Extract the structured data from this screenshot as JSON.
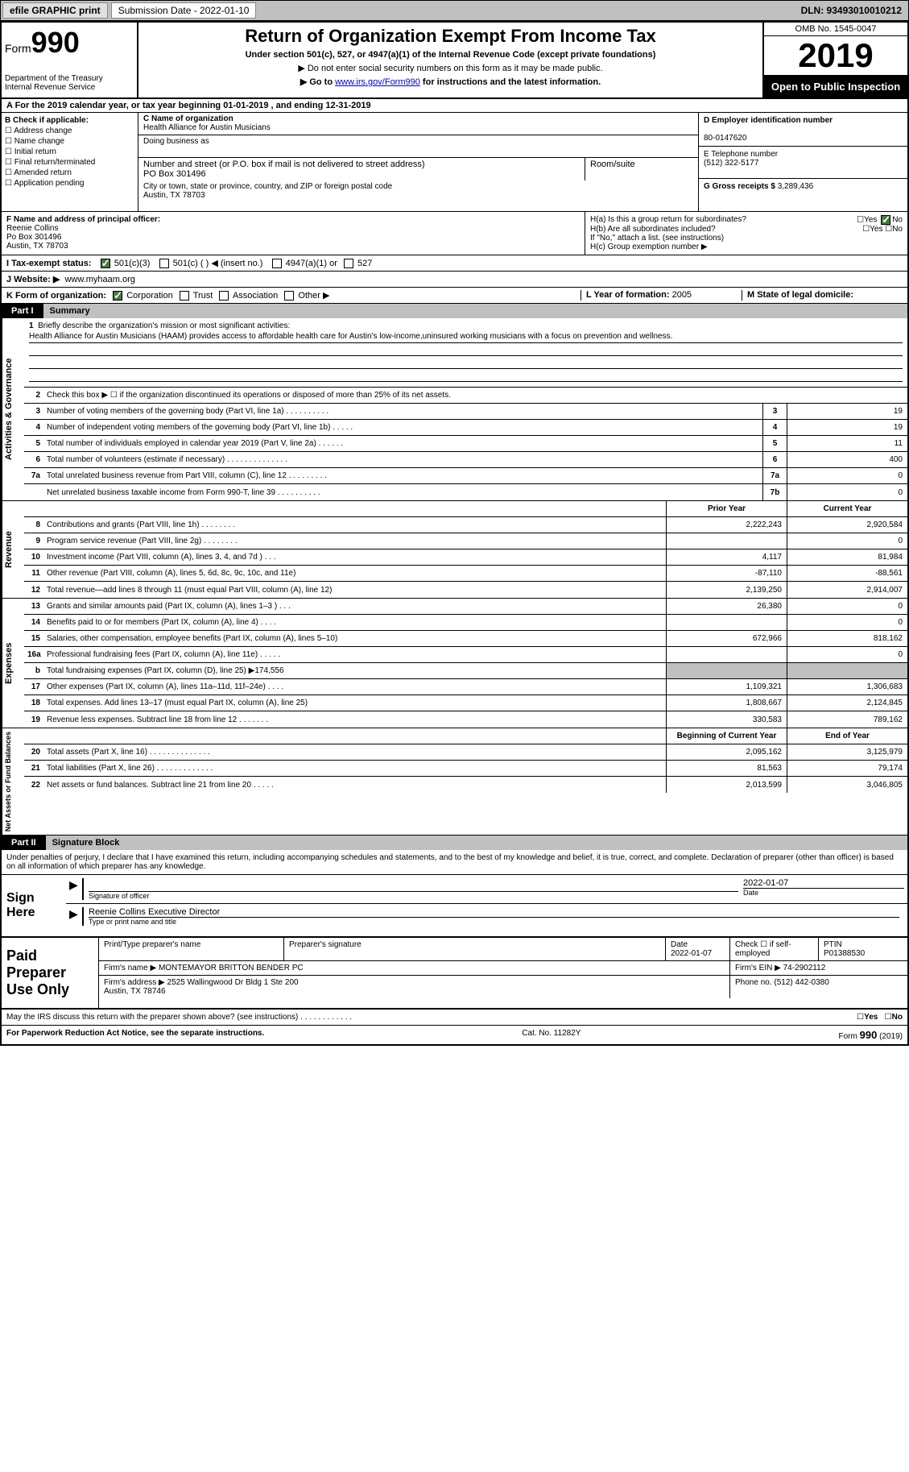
{
  "topbar": {
    "efile": "efile GRAPHIC print",
    "submission": "Submission Date - 2022-01-10",
    "dln": "DLN: 93493010010212"
  },
  "header": {
    "form_prefix": "Form",
    "form_no": "990",
    "dept": "Department of the Treasury\nInternal Revenue Service",
    "title": "Return of Organization Exempt From Income Tax",
    "sub1": "Under section 501(c), 527, or 4947(a)(1) of the Internal Revenue Code (except private foundations)",
    "sub2": "▶ Do not enter social security numbers on this form as it may be made public.",
    "sub3_pre": "▶ Go to ",
    "sub3_link": "www.irs.gov/Form990",
    "sub3_post": " for instructions and the latest information.",
    "omb": "OMB No. 1545-0047",
    "year": "2019",
    "open": "Open to Public Inspection"
  },
  "rowA": "A For the 2019 calendar year, or tax year beginning 01-01-2019   , and ending 12-31-2019",
  "checkB": {
    "title": "B Check if applicable:",
    "items": [
      "Address change",
      "Name change",
      "Initial return",
      "Final return/terminated",
      "Amended return",
      "Application pending"
    ]
  },
  "entityC": {
    "name_lbl": "C Name of organization",
    "name": "Health Alliance for Austin Musicians",
    "dba_lbl": "Doing business as",
    "dba": "",
    "addr_lbl": "Number and street (or P.O. box if mail is not delivered to street address)",
    "room_lbl": "Room/suite",
    "addr": "PO Box 301496",
    "city_lbl": "City or town, state or province, country, and ZIP or foreign postal code",
    "city": "Austin, TX  78703"
  },
  "entityR": {
    "ein_lbl": "D Employer identification number",
    "ein": "80-0147620",
    "tel_lbl": "E Telephone number",
    "tel": "(512) 322-5177",
    "gross_lbl": "G Gross receipts $",
    "gross": "3,289,436"
  },
  "F": {
    "lbl": "F  Name and address of principal officer:",
    "name": "Reenie Collins",
    "addr1": "Po Box 301496",
    "addr2": "Austin, TX  78703"
  },
  "H": {
    "a": "H(a)  Is this a group return for subordinates?",
    "b": "H(b)  Are all subordinates included?",
    "b2": "If \"No,\" attach a list. (see instructions)",
    "c": "H(c)  Group exemption number ▶"
  },
  "I": {
    "lbl": "I   Tax-exempt status:",
    "o501c3": "501(c)(3)",
    "o501c": "501(c) (  ) ◀ (insert no.)",
    "o4947": "4947(a)(1) or",
    "o527": "527"
  },
  "J": {
    "lbl": "J   Website: ▶",
    "val": "www.myhaam.org"
  },
  "K": {
    "lbl": "K Form of organization:",
    "corp": "Corporation",
    "trust": "Trust",
    "assoc": "Association",
    "other": "Other ▶"
  },
  "L": {
    "lbl": "L Year of formation:",
    "val": "2005"
  },
  "M": {
    "lbl": "M State of legal domicile:",
    "val": ""
  },
  "part1": {
    "lbl": "Part I",
    "title": "Summary"
  },
  "mission": {
    "n": "1",
    "lbl": "Briefly describe the organization's mission or most significant activities:",
    "text": "Health Alliance for Austin Musicians (HAAM) provides access to affordable health care for Austin's low-income,uninsured working musicians with a focus on prevention and wellness."
  },
  "gov": {
    "side": "Activities & Governance",
    "r2": "Check this box ▶ ☐  if the organization discontinued its operations or disposed of more than 25% of its net assets.",
    "rows": [
      {
        "n": "3",
        "d": "Number of voting members of the governing body (Part VI, line 1a)  .   .   .   .   .   .   .   .   .   .",
        "box": "3",
        "v": "19"
      },
      {
        "n": "4",
        "d": "Number of independent voting members of the governing body (Part VI, line 1b)   .   .   .   .   .",
        "box": "4",
        "v": "19"
      },
      {
        "n": "5",
        "d": "Total number of individuals employed in calendar year 2019 (Part V, line 2a)   .   .   .   .   .   .",
        "box": "5",
        "v": "11"
      },
      {
        "n": "6",
        "d": "Total number of volunteers (estimate if necessary)   .   .   .   .   .   .   .   .   .   .   .   .   .   .",
        "box": "6",
        "v": "400"
      },
      {
        "n": "7a",
        "d": "Total unrelated business revenue from Part VIII, column (C), line 12   .   .   .   .   .   .   .   .   .",
        "box": "7a",
        "v": "0"
      },
      {
        "n": "",
        "d": "Net unrelated business taxable income from Form 990-T, line 39   .   .   .   .   .   .   .   .   .   .",
        "box": "7b",
        "v": "0"
      }
    ]
  },
  "rev": {
    "side": "Revenue",
    "hdr_prior": "Prior Year",
    "hdr_curr": "Current Year",
    "rows": [
      {
        "n": "8",
        "d": "Contributions and grants (Part VIII, line 1h)   .   .   .   .   .   .   .   .",
        "p": "2,222,243",
        "c": "2,920,584"
      },
      {
        "n": "9",
        "d": "Program service revenue (Part VIII, line 2g)   .   .   .   .   .   .   .   .",
        "p": "",
        "c": "0"
      },
      {
        "n": "10",
        "d": "Investment income (Part VIII, column (A), lines 3, 4, and 7d )   .   .   .",
        "p": "4,117",
        "c": "81,984"
      },
      {
        "n": "11",
        "d": "Other revenue (Part VIII, column (A), lines 5, 6d, 8c, 9c, 10c, and 11e)",
        "p": "-87,110",
        "c": "-88,561"
      },
      {
        "n": "12",
        "d": "Total revenue—add lines 8 through 11 (must equal Part VIII, column (A), line 12)",
        "p": "2,139,250",
        "c": "2,914,007"
      }
    ]
  },
  "exp": {
    "side": "Expenses",
    "rows": [
      {
        "n": "13",
        "d": "Grants and similar amounts paid (Part IX, column (A), lines 1–3 )   .   .   .",
        "p": "26,380",
        "c": "0"
      },
      {
        "n": "14",
        "d": "Benefits paid to or for members (Part IX, column (A), line 4)   .   .   .   .",
        "p": "",
        "c": "0"
      },
      {
        "n": "15",
        "d": "Salaries, other compensation, employee benefits (Part IX, column (A), lines 5–10)",
        "p": "672,966",
        "c": "818,162"
      },
      {
        "n": "16a",
        "d": "Professional fundraising fees (Part IX, column (A), line 11e)   .   .   .   .   .",
        "p": "",
        "c": "0"
      },
      {
        "n": "b",
        "d": "Total fundraising expenses (Part IX, column (D), line 25) ▶174,556",
        "p": "grey",
        "c": "grey"
      },
      {
        "n": "17",
        "d": "Other expenses (Part IX, column (A), lines 11a–11d, 11f–24e)   .   .   .   .",
        "p": "1,109,321",
        "c": "1,306,683"
      },
      {
        "n": "18",
        "d": "Total expenses. Add lines 13–17 (must equal Part IX, column (A), line 25)",
        "p": "1,808,667",
        "c": "2,124,845"
      },
      {
        "n": "19",
        "d": "Revenue less expenses. Subtract line 18 from line 12   .   .   .   .   .   .   .",
        "p": "330,583",
        "c": "789,162"
      }
    ]
  },
  "net": {
    "side": "Net Assets or Fund Balances",
    "hdr_beg": "Beginning of Current Year",
    "hdr_end": "End of Year",
    "rows": [
      {
        "n": "20",
        "d": "Total assets (Part X, line 16)   .   .   .   .   .   .   .   .   .   .   .   .   .   .",
        "p": "2,095,162",
        "c": "3,125,979"
      },
      {
        "n": "21",
        "d": "Total liabilities (Part X, line 26)   .   .   .   .   .   .   .   .   .   .   .   .   .",
        "p": "81,563",
        "c": "79,174"
      },
      {
        "n": "22",
        "d": "Net assets or fund balances. Subtract line 21 from line 20   .   .   .   .   .",
        "p": "2,013,599",
        "c": "3,046,805"
      }
    ]
  },
  "part2": {
    "lbl": "Part II",
    "title": "Signature Block"
  },
  "sig_decl": "Under penalties of perjury, I declare that I have examined this return, including accompanying schedules and statements, and to the best of my knowledge and belief, it is true, correct, and complete. Declaration of preparer (other than officer) is based on all information of which preparer has any knowledge.",
  "sign": {
    "lbl": "Sign Here",
    "sig_lbl": "Signature of officer",
    "date": "2022-01-07",
    "date_lbl": "Date",
    "name": "Reenie Collins  Executive Director",
    "name_lbl": "Type or print name and title"
  },
  "prep": {
    "lbl": "Paid Preparer Use Only",
    "h1": "Print/Type preparer's name",
    "h2": "Preparer's signature",
    "h3": "Date",
    "h3v": "2022-01-07",
    "h4": "Check ☐ if self-employed",
    "h5": "PTIN",
    "h5v": "P01388530",
    "firm_lbl": "Firm's name    ▶",
    "firm": "MONTEMAYOR BRITTON BENDER PC",
    "ein_lbl": "Firm's EIN ▶",
    "ein": "74-2902112",
    "addr_lbl": "Firm's address ▶",
    "addr": "2525 Wallingwood Dr Bldg 1 Ste 200\nAustin, TX  78746",
    "phone_lbl": "Phone no.",
    "phone": "(512) 442-0380"
  },
  "footer": {
    "q": "May the IRS discuss this return with the preparer shown above? (see instructions)   .   .   .   .   .   .   .   .   .   .   .   .",
    "yes": "Yes",
    "no": "No",
    "pra": "For Paperwork Reduction Act Notice, see the separate instructions.",
    "cat": "Cat. No. 11282Y",
    "form": "Form 990 (2019)"
  }
}
